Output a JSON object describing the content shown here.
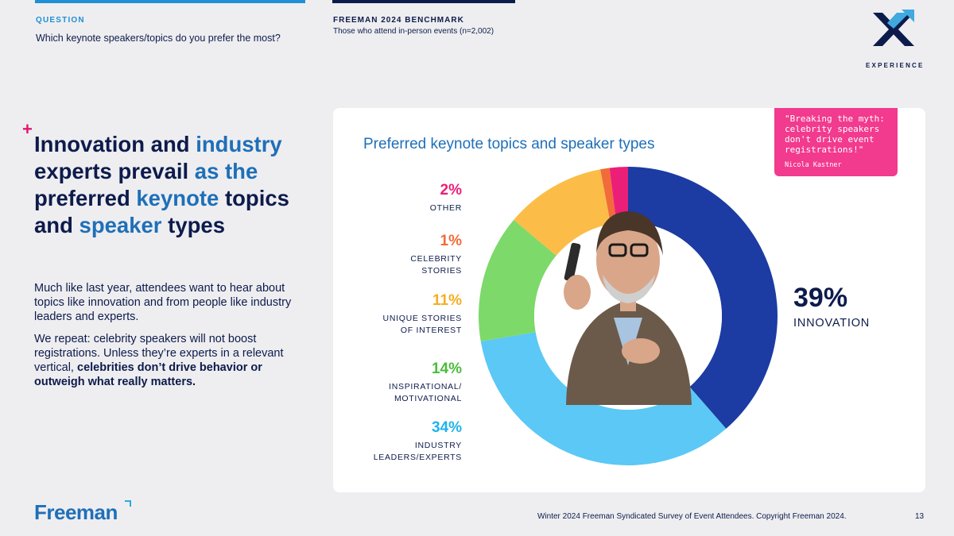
{
  "header": {
    "question_label": "QUESTION",
    "question_text": "Which keynote speakers/topics do you prefer the most?",
    "benchmark_label": "FREEMAN 2024 BENCHMARK",
    "benchmark_sub": "Those who attend in-person events (n=2,002)",
    "brand_word": "EXPERIENCE"
  },
  "headline": {
    "p1": "Innovation and ",
    "p2": "industry",
    "p3": " experts prevail ",
    "p4": "as the",
    "p5": " preferred ",
    "p6": "keynote",
    "p7": " topics and ",
    "p8": "speaker",
    "p9": " types"
  },
  "body": {
    "para1": "Much like last year, attendees want to hear about topics like innovation and from people like industry leaders and experts.",
    "para2_plain": "We repeat: celebrity speakers will not boost registrations. Unless they’re experts in a relevant vertical, ",
    "para2_bold": "celebrities don’t drive behavior or outweigh what really matters."
  },
  "quote": {
    "text": "\"Breaking the myth: celebrity speakers don't drive event registrations!\"",
    "author": "Nicola Kastner"
  },
  "labels": {
    "other": {
      "pct": "2%",
      "l1": "OTHER",
      "l2": ""
    },
    "celebrity": {
      "pct": "1%",
      "l1": "CELEBRITY",
      "l2": "STORIES"
    },
    "unique": {
      "pct": "11%",
      "l1": "UNIQUE STORIES",
      "l2": "OF INTEREST"
    },
    "inspirational": {
      "pct": "14%",
      "l1": "INSPIRATIONAL/",
      "l2": "MOTIVATIONAL"
    },
    "industry": {
      "pct": "34%",
      "l1": "INDUSTRY",
      "l2": "LEADERS/EXPERTS"
    },
    "innovation": {
      "pct": "39%",
      "l1": "INNOVATION"
    }
  },
  "chart_data": {
    "type": "pie",
    "title": "Preferred keynote topics and speaker types",
    "categories": [
      "Innovation",
      "Industry leaders/experts",
      "Inspirational/motivational",
      "Unique stories of interest",
      "Celebrity stories",
      "Other"
    ],
    "values": [
      39,
      34,
      14,
      11,
      1,
      2
    ],
    "colors": [
      "#1c3ba3",
      "#5bc8f5",
      "#7dd96a",
      "#fbbd47",
      "#f26b3a",
      "#ec1f78"
    ],
    "donut": true
  },
  "footer": {
    "logo": "Freeman",
    "source": "Winter 2024 Freeman Syndicated Survey of Event Attendees. Copyright Freeman 2024.",
    "page": "13"
  }
}
